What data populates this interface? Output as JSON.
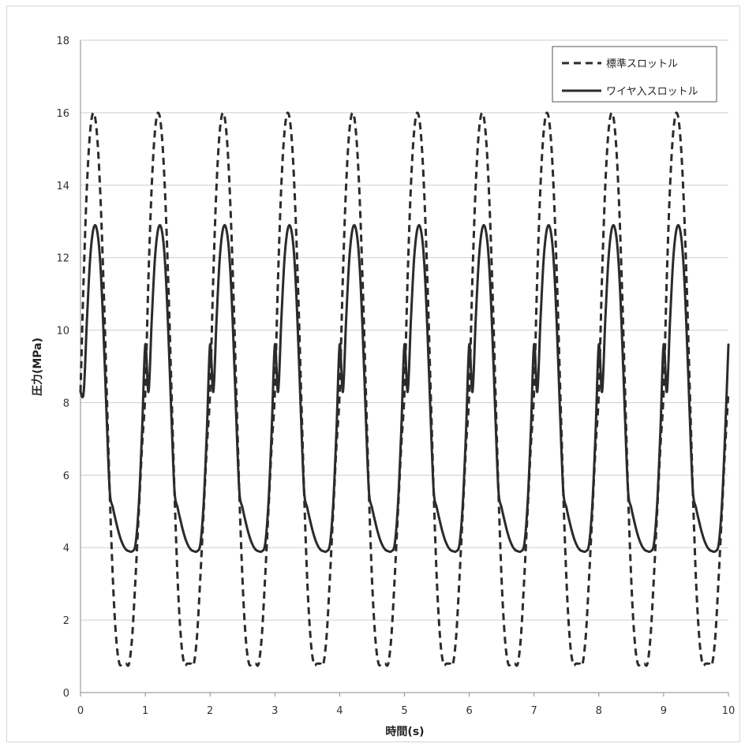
{
  "chart_data": {
    "type": "line",
    "xlabel": "時間(s)",
    "ylabel": "圧力(MPa)",
    "xlim": [
      0,
      10
    ],
    "ylim": [
      0,
      18
    ],
    "xticks": [
      "0",
      "1",
      "2",
      "3",
      "4",
      "5",
      "6",
      "7",
      "8",
      "9",
      "10"
    ],
    "yticks": [
      "0",
      "2",
      "4",
      "6",
      "8",
      "10",
      "12",
      "14",
      "16",
      "18"
    ],
    "grid": "horizontal",
    "legend_position": "top-right",
    "line_color": "#2b2b2b",
    "period_s": 1.0,
    "series": [
      {
        "name": "標準スロットル",
        "style": "dashed",
        "cycle_profile": {
          "x": [
            0.0,
            0.05,
            0.1,
            0.15,
            0.2,
            0.25,
            0.3,
            0.35,
            0.4,
            0.45,
            0.5,
            0.55,
            0.6,
            0.65,
            0.7,
            0.75,
            0.8,
            0.85,
            0.9,
            0.95,
            1.0
          ],
          "y": [
            8.3,
            11.5,
            14.0,
            15.5,
            16.0,
            15.5,
            14.0,
            11.6,
            8.6,
            5.6,
            3.1,
            1.5,
            0.8,
            0.8,
            0.8,
            0.8,
            1.6,
            3.2,
            5.0,
            6.8,
            8.3
          ]
        }
      },
      {
        "name": "ワイヤ入スロットル",
        "style": "solid",
        "cycle_profile": {
          "x": [
            0.0,
            0.05,
            0.1,
            0.15,
            0.2,
            0.25,
            0.3,
            0.35,
            0.4,
            0.45,
            0.5,
            0.55,
            0.6,
            0.65,
            0.7,
            0.75,
            0.8,
            0.85,
            0.9,
            0.95,
            1.0
          ],
          "y": [
            8.3,
            8.3,
            10.3,
            12.0,
            12.8,
            12.8,
            12.0,
            10.2,
            7.8,
            5.6,
            5.1,
            4.7,
            4.35,
            4.1,
            3.95,
            3.9,
            3.9,
            4.1,
            5.2,
            7.2,
            9.6
          ]
        }
      }
    ]
  }
}
